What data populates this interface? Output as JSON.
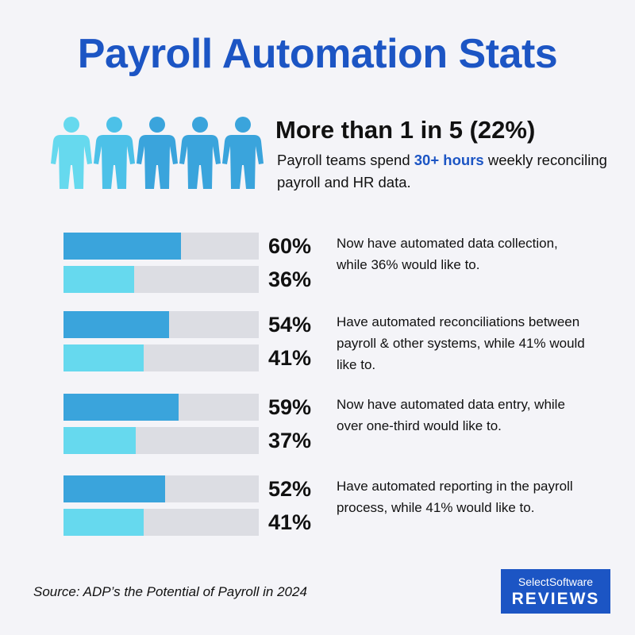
{
  "title": "Payroll Automation Stats",
  "highlight": {
    "headline": "More than 1 in 5 (22%)",
    "sub_before": "Payroll teams spend ",
    "sub_emphasis": "30+ hours",
    "sub_after": " weekly reconciling payroll and HR data.",
    "figure_icon": "person-icon",
    "figure_count": 5
  },
  "chart_data": {
    "type": "bar",
    "orientation": "horizontal",
    "value_max": 100,
    "unit": "%",
    "colors": {
      "current": "#3aa4dc",
      "would_like": "#66d9ee",
      "track": "#dcdde3"
    },
    "groups": [
      {
        "current": 60,
        "would_like": 36,
        "current_label": "60%",
        "would_like_label": "36%",
        "description": "Now have automated data collection, while 36% would like to."
      },
      {
        "current": 54,
        "would_like": 41,
        "current_label": "54%",
        "would_like_label": "41%",
        "description": "Have automated reconciliations between payroll & other systems, while 41% would like to."
      },
      {
        "current": 59,
        "would_like": 37,
        "current_label": "59%",
        "would_like_label": "37%",
        "description": "Now have automated data entry, while over one-third would like to."
      },
      {
        "current": 52,
        "would_like": 41,
        "current_label": "52%",
        "would_like_label": "41%",
        "description": "Have automated reporting in the payroll process, while 41% would like to."
      }
    ]
  },
  "source": "Source: ADP’s the Potential of Payroll in 2024",
  "logo": {
    "line1": "SelectSoftware",
    "line2": "REVIEWS",
    "color": "#1c55c4"
  }
}
